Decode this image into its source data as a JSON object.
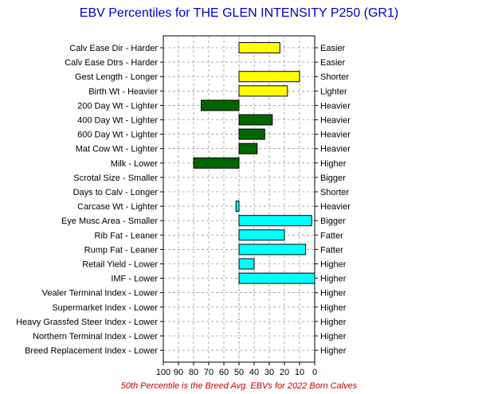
{
  "chart_data": {
    "type": "bar",
    "orientation": "horizontal",
    "title": "EBV Percentiles for THE GLEN INTENSITY P250 (GR1)",
    "footnote": "50th Percentile is the Breed Avg. EBVs for 2022 Born Calves",
    "xlim": [
      100,
      0
    ],
    "x_reversed": true,
    "x_ticks": [
      "100",
      "90",
      "80",
      "70",
      "60",
      "50",
      "40",
      "30",
      "20",
      "10",
      "0"
    ],
    "grid": true,
    "baseline": 50,
    "categories": [
      "Calv Ease Dir - Harder",
      "Calv Ease Dtrs - Harder",
      "Gest Length - Longer",
      "Birth Wt - Heavier",
      "200 Day Wt - Lighter",
      "400 Day Wt - Lighter",
      "600 Day Wt - Lighter",
      "Mat Cow Wt - Lighter",
      "Milk - Lower",
      "Scrotal Size - Smaller",
      "Days to Calv - Longer",
      "Carcase Wt - Lighter",
      "Eye Musc Area - Smaller",
      "Rib Fat - Leaner",
      "Rump Fat - Leaner",
      "Retail Yield - Lower",
      "IMF - Lower",
      "Vealer Terminal Index - Lower",
      "Supermarket Index - Lower",
      "Heavy Grassfed Steer Index - Lower",
      "Northern Terminal Index - Lower",
      "Breed Replacement Index - Lower"
    ],
    "right_labels": [
      "Easier",
      "Easier",
      "Shorter",
      "Lighter",
      "Heavier",
      "Heavier",
      "Heavier",
      "Heavier",
      "Higher",
      "Bigger",
      "Shorter",
      "Heavier",
      "Bigger",
      "Fatter",
      "Fatter",
      "Higher",
      "Higher",
      "Higher",
      "Higher",
      "Higher",
      "Higher",
      "Higher"
    ],
    "values": [
      23,
      null,
      10,
      18,
      75,
      28,
      33,
      38,
      80,
      null,
      null,
      52,
      2,
      20,
      6,
      40,
      0,
      null,
      null,
      null,
      null,
      null
    ],
    "bar_colors": [
      "#ffff00",
      null,
      "#ffff00",
      "#ffff00",
      "#006600",
      "#006600",
      "#006600",
      "#006600",
      "#006600",
      null,
      null,
      "#00ffff",
      "#00ffff",
      "#00ffff",
      "#00ffff",
      "#00ffff",
      "#00ffff",
      null,
      null,
      null,
      null,
      null
    ]
  }
}
